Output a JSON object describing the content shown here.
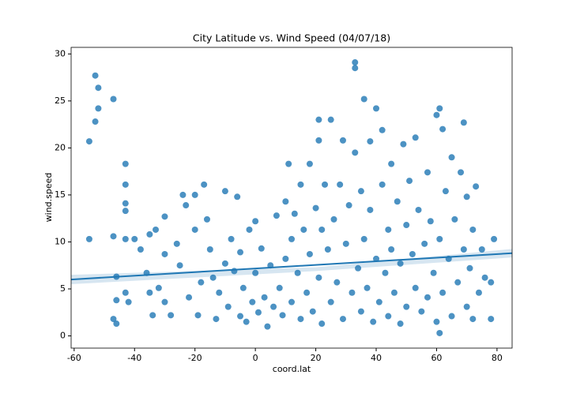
{
  "chart_data": {
    "type": "scatter",
    "title": "City Latitude vs. Wind Speed (04/07/18)",
    "x_label": "coord.lat",
    "y_label": "wind.speed",
    "xlim": [
      -61,
      85
    ],
    "ylim": [
      -1.3,
      30.7
    ],
    "xticks": [
      -60,
      -40,
      -20,
      0,
      20,
      40,
      60,
      80
    ],
    "yticks": [
      0,
      5,
      10,
      15,
      20,
      25,
      30
    ],
    "color": "#1f77b4",
    "x": [
      -55,
      -53,
      -52,
      -52,
      -53,
      -47,
      -55,
      -47,
      -46,
      -46,
      -47,
      -46,
      -43,
      -43,
      -43,
      -43,
      -43,
      -42,
      -43,
      -40,
      -38,
      -36,
      -35,
      -35,
      -34,
      -33,
      -32,
      -30,
      -30,
      -30,
      -28,
      -26,
      -25,
      -24,
      -23,
      -22,
      -20,
      -20,
      -19,
      -18,
      -17,
      -16,
      -15,
      -14,
      -13,
      -12,
      -10,
      -10,
      -9,
      -8,
      -7,
      -6,
      -5,
      -5,
      -4,
      -3,
      -2,
      -1,
      0,
      0,
      1,
      2,
      3,
      4,
      5,
      6,
      7,
      8,
      9,
      10,
      10,
      11,
      12,
      12,
      13,
      14,
      15,
      15,
      16,
      17,
      18,
      18,
      19,
      20,
      21,
      21,
      21,
      22,
      22,
      23,
      24,
      25,
      25,
      26,
      27,
      28,
      29,
      29,
      30,
      31,
      32,
      33,
      33,
      33,
      34,
      35,
      35,
      36,
      36,
      37,
      38,
      38,
      39,
      40,
      40,
      41,
      42,
      42,
      43,
      44,
      44,
      45,
      45,
      46,
      47,
      48,
      48,
      49,
      50,
      50,
      51,
      52,
      53,
      53,
      54,
      55,
      56,
      57,
      57,
      58,
      59,
      60,
      60,
      61,
      61,
      61,
      62,
      62,
      63,
      64,
      65,
      65,
      66,
      67,
      68,
      69,
      69,
      70,
      70,
      71,
      72,
      72,
      73,
      74,
      75,
      76,
      78,
      78,
      79
    ],
    "values": [
      20.7,
      27.7,
      26.4,
      24.2,
      22.8,
      25.2,
      10.3,
      10.6,
      6.3,
      3.8,
      1.8,
      1.3,
      18.3,
      16.1,
      14.1,
      13.3,
      10.3,
      3.6,
      4.6,
      10.3,
      9.2,
      6.7,
      10.8,
      4.6,
      2.2,
      11.3,
      5.1,
      12.7,
      8.7,
      3.6,
      2.2,
      9.8,
      7.5,
      15,
      13.9,
      4.1,
      15,
      11.3,
      2.2,
      5.7,
      16.1,
      12.4,
      9.2,
      6.2,
      1.8,
      4.6,
      15.4,
      7.7,
      3.1,
      10.3,
      6.9,
      14.8,
      2.1,
      8.9,
      5.1,
      1.5,
      11.3,
      3.6,
      12.2,
      6.7,
      2.5,
      9.3,
      4.1,
      1,
      7.5,
      3.1,
      12.8,
      5.1,
      2.2,
      14.3,
      8.2,
      18.3,
      10.3,
      3.6,
      13,
      6.7,
      16.1,
      1.8,
      11.3,
      4.6,
      18.3,
      8.7,
      2.6,
      13.6,
      20.8,
      23,
      6.2,
      11.3,
      1.3,
      16.1,
      9.2,
      23,
      3.6,
      12.4,
      5.7,
      16.1,
      20.8,
      1.8,
      9.8,
      13.9,
      4.6,
      29.1,
      28.5,
      19.5,
      7.2,
      15.4,
      2.6,
      25.2,
      10.3,
      5.1,
      20.7,
      13.4,
      1.5,
      24.2,
      8.2,
      3.6,
      16.1,
      21.9,
      6.7,
      11.3,
      2.1,
      18.3,
      9.2,
      4.6,
      14.3,
      1.3,
      7.7,
      20.4,
      11.8,
      3.1,
      16.5,
      8.7,
      5.1,
      21.1,
      13.4,
      2.6,
      9.8,
      17.4,
      4.1,
      12.2,
      6.7,
      23.5,
      1.5,
      24.2,
      0.3,
      10.3,
      22,
      4.6,
      15.4,
      8.2,
      2.1,
      19,
      12.4,
      5.7,
      17.4,
      22.7,
      9.2,
      3.1,
      14.8,
      7.2,
      11.3,
      1.8,
      15.9,
      4.6,
      9.2,
      6.2,
      1.8,
      5.7,
      10.3
    ],
    "fit": {
      "x": [
        -61,
        85
      ],
      "values": [
        6.0,
        8.8
      ]
    },
    "band": {
      "x": [
        -61,
        20,
        85
      ],
      "lower": [
        5.5,
        6.9,
        8.35
      ],
      "upper": [
        6.5,
        7.3,
        9.25
      ]
    }
  }
}
